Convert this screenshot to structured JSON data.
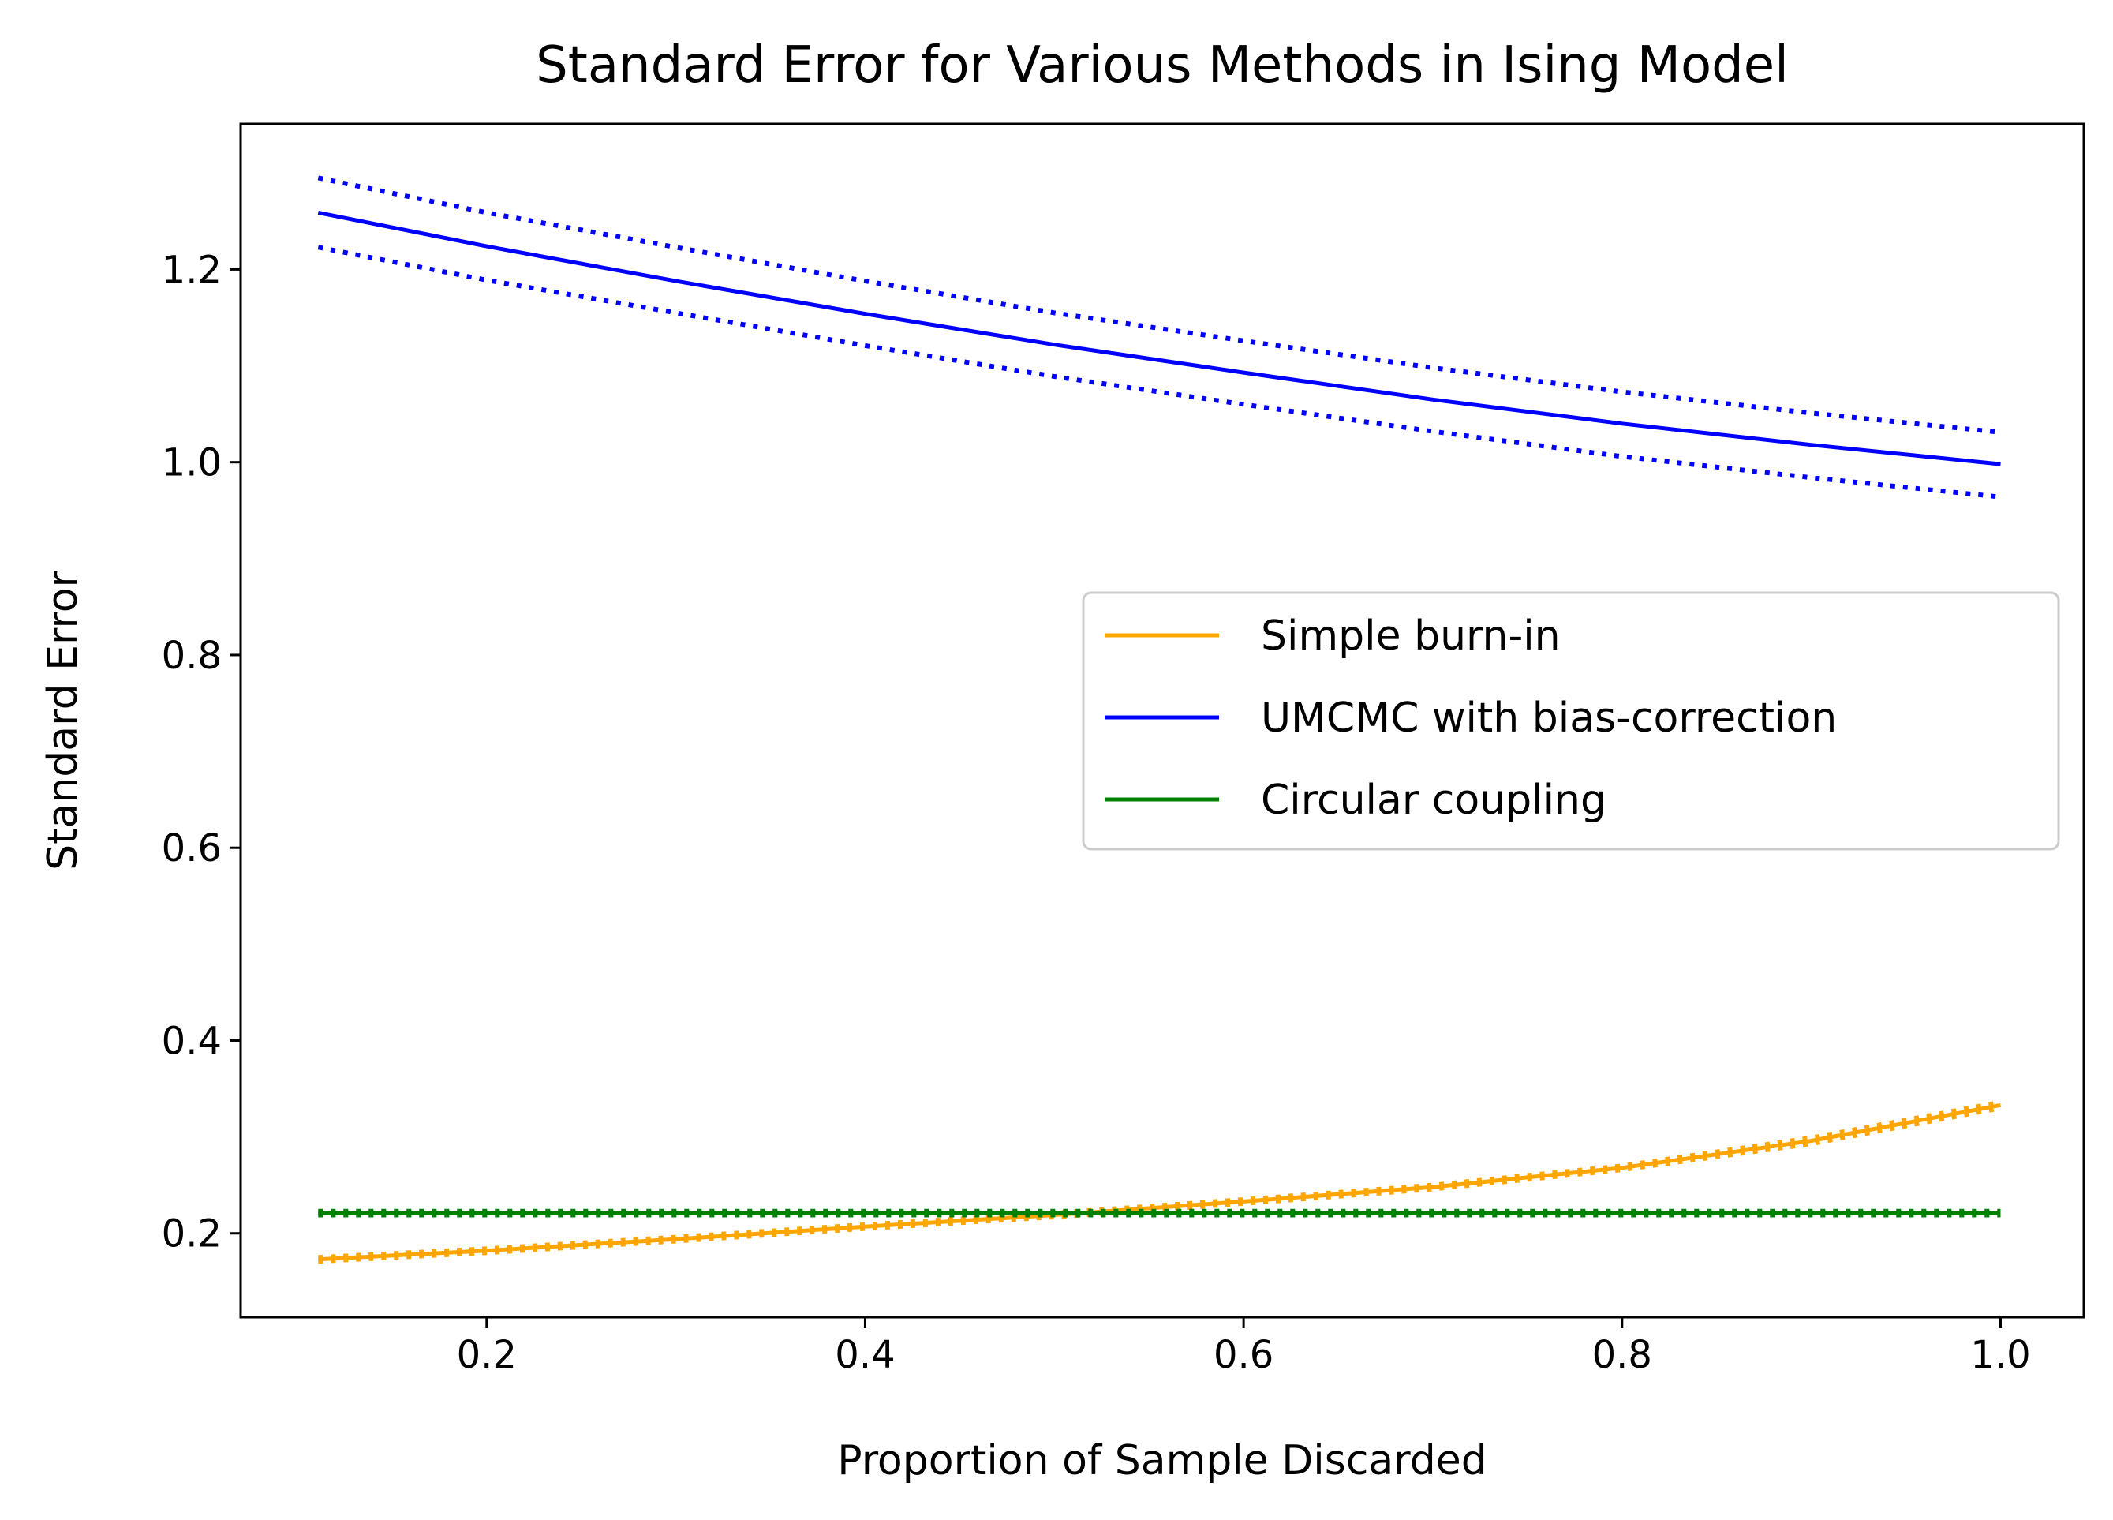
{
  "chart_data": {
    "type": "line",
    "title": "Standard Error for Various Methods in Ising Model",
    "xlabel": "Proportion of Sample Discarded",
    "ylabel": "Standard Error",
    "xlim": [
      0.07,
      1.044
    ],
    "ylim": [
      0.113,
      1.351
    ],
    "xticks": [
      0.2,
      0.4,
      0.6,
      0.8,
      1.0
    ],
    "xtick_labels": [
      "0.2",
      "0.4",
      "0.6",
      "0.8",
      "1.0"
    ],
    "yticks": [
      0.2,
      0.4,
      0.6,
      0.8,
      1.0,
      1.2
    ],
    "ytick_labels": [
      "0.2",
      "0.4",
      "0.6",
      "0.8",
      "1.0",
      "1.2"
    ],
    "grid": false,
    "legend_position": "center-right",
    "x": [
      0.111,
      0.2,
      0.3,
      0.4,
      0.5,
      0.6,
      0.7,
      0.8,
      0.9,
      1.0
    ],
    "series": [
      {
        "name": "Simple burn-in",
        "color": "#ffa500",
        "values": [
          0.173,
          0.182,
          0.194,
          0.207,
          0.219,
          0.233,
          0.248,
          0.268,
          0.296,
          0.333
        ],
        "lower": [
          0.171,
          0.18,
          0.192,
          0.205,
          0.217,
          0.231,
          0.246,
          0.266,
          0.293,
          0.33
        ],
        "upper": [
          0.175,
          0.184,
          0.196,
          0.209,
          0.221,
          0.235,
          0.25,
          0.27,
          0.299,
          0.336
        ]
      },
      {
        "name": "UMCMC with bias-correction",
        "color": "#0000ff",
        "values": [
          1.259,
          1.224,
          1.188,
          1.154,
          1.122,
          1.093,
          1.065,
          1.04,
          1.018,
          0.998
        ],
        "lower": [
          1.223,
          1.189,
          1.155,
          1.121,
          1.089,
          1.06,
          1.032,
          1.006,
          0.984,
          0.964
        ],
        "upper": [
          1.295,
          1.259,
          1.223,
          1.188,
          1.155,
          1.126,
          1.098,
          1.073,
          1.051,
          1.031
        ]
      },
      {
        "name": "Circular coupling",
        "color": "#008000",
        "values": [
          0.221,
          0.221,
          0.221,
          0.221,
          0.221,
          0.221,
          0.221,
          0.221,
          0.221,
          0.221
        ],
        "lower": [
          0.219,
          0.219,
          0.219,
          0.219,
          0.219,
          0.219,
          0.219,
          0.219,
          0.219,
          0.219
        ],
        "upper": [
          0.223,
          0.223,
          0.223,
          0.223,
          0.223,
          0.223,
          0.223,
          0.223,
          0.223,
          0.223
        ]
      }
    ]
  }
}
